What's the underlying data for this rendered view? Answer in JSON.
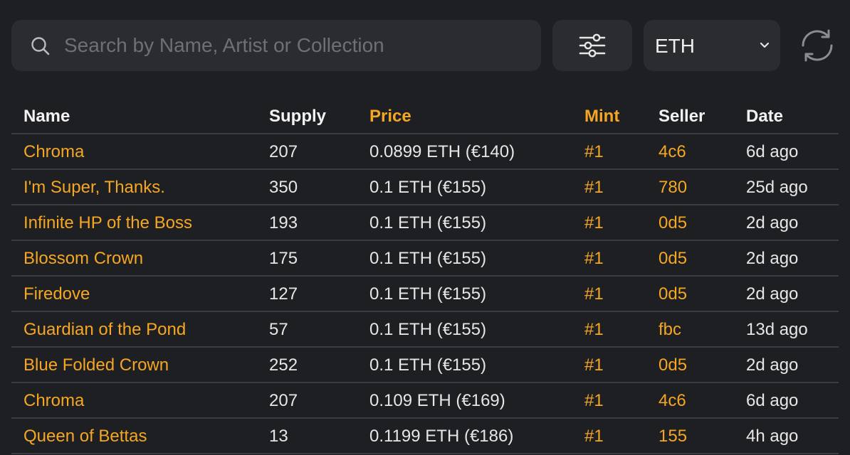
{
  "search": {
    "placeholder": "Search by Name, Artist or Collection",
    "value": ""
  },
  "currency": {
    "selected": "ETH"
  },
  "icons": {
    "search": "search-icon",
    "filter": "sliders-icon",
    "currency_dropdown": "chevron-down-icon",
    "refresh": "refresh-icon"
  },
  "colors": {
    "background": "#1e1f22",
    "panel": "#2a2c30",
    "accent": "#f5a623",
    "text": "#e6e6e6",
    "divider": "#3b3d42"
  },
  "table": {
    "headers": {
      "name": "Name",
      "supply": "Supply",
      "price": "Price",
      "mint": "Mint",
      "seller": "Seller",
      "date": "Date"
    },
    "rows": [
      {
        "name": "Chroma",
        "supply": "207",
        "price": "0.0899 ETH (€140)",
        "mint": "#1",
        "seller": "4c6",
        "date": "6d ago"
      },
      {
        "name": "I'm Super, Thanks.",
        "supply": "350",
        "price": "0.1 ETH (€155)",
        "mint": "#1",
        "seller": "780",
        "date": "25d ago"
      },
      {
        "name": "Infinite HP of the Boss",
        "supply": "193",
        "price": "0.1 ETH (€155)",
        "mint": "#1",
        "seller": "0d5",
        "date": "2d ago"
      },
      {
        "name": "Blossom Crown",
        "supply": "175",
        "price": "0.1 ETH (€155)",
        "mint": "#1",
        "seller": "0d5",
        "date": "2d ago"
      },
      {
        "name": "Firedove",
        "supply": "127",
        "price": "0.1 ETH (€155)",
        "mint": "#1",
        "seller": "0d5",
        "date": "2d ago"
      },
      {
        "name": "Guardian of the Pond",
        "supply": "57",
        "price": "0.1 ETH (€155)",
        "mint": "#1",
        "seller": "fbc",
        "date": "13d ago"
      },
      {
        "name": "Blue Folded Crown",
        "supply": "252",
        "price": "0.1 ETH (€155)",
        "mint": "#1",
        "seller": "0d5",
        "date": "2d ago"
      },
      {
        "name": "Chroma",
        "supply": "207",
        "price": "0.109 ETH (€169)",
        "mint": "#1",
        "seller": "4c6",
        "date": "6d ago"
      },
      {
        "name": "Queen of Bettas",
        "supply": "13",
        "price": "0.1199 ETH (€186)",
        "mint": "#1",
        "seller": "155",
        "date": "4h ago"
      }
    ]
  }
}
